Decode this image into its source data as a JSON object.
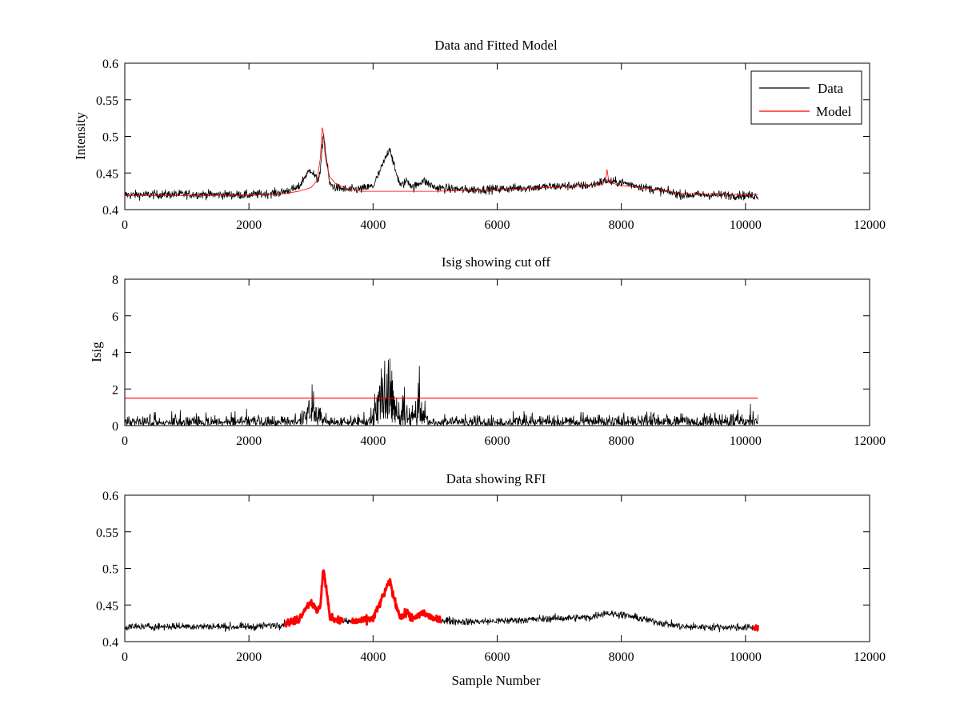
{
  "colors": {
    "data": "#000000",
    "model": "#ff0000",
    "rfi": "#ff0000",
    "cutoff": "#ff0000",
    "background": "#ffffff"
  },
  "chart_data": [
    {
      "type": "line",
      "title": "Data and Fitted Model",
      "xlabel": "",
      "ylabel": "Intensity",
      "xlim": [
        0,
        12000
      ],
      "ylim": [
        0.4,
        0.6
      ],
      "xticks": [
        0,
        2000,
        4000,
        6000,
        8000,
        10000,
        12000
      ],
      "xtick_labels": [
        "0",
        "2000",
        "4000",
        "6000",
        "8000",
        "10000",
        "12000"
      ],
      "yticks": [
        0.4,
        0.45,
        0.5,
        0.55,
        0.6
      ],
      "ytick_labels": [
        "0.4",
        "0.45",
        "0.5",
        "0.55",
        "0.6"
      ],
      "legend": {
        "position": "top-right",
        "entries": [
          "Data",
          "Model"
        ]
      },
      "series": [
        {
          "name": "Data",
          "color": "#000000",
          "noise": 0.006,
          "x": [
            0,
            1000,
            2000,
            2500,
            2800,
            2900,
            3000,
            3100,
            3150,
            3200,
            3250,
            3300,
            3400,
            3600,
            3800,
            4000,
            4100,
            4200,
            4270,
            4350,
            4450,
            4550,
            4650,
            4800,
            5000,
            5500,
            6000,
            7000,
            7500,
            7750,
            7800,
            8000,
            8500,
            9000,
            9500,
            10200
          ],
          "y": [
            0.42,
            0.421,
            0.42,
            0.423,
            0.43,
            0.445,
            0.455,
            0.44,
            0.45,
            0.505,
            0.47,
            0.435,
            0.43,
            0.427,
            0.428,
            0.432,
            0.45,
            0.47,
            0.485,
            0.455,
            0.432,
            0.44,
            0.43,
            0.44,
            0.43,
            0.427,
            0.428,
            0.432,
            0.433,
            0.44,
            0.438,
            0.437,
            0.428,
            0.42,
            0.42,
            0.419
          ]
        },
        {
          "name": "Model",
          "color": "#ff0000",
          "noise": 0,
          "x": [
            0,
            1000,
            2000,
            2500,
            2800,
            3000,
            3100,
            3150,
            3180,
            3200,
            3230,
            3300,
            3400,
            3600,
            3800,
            4000,
            5000,
            6000,
            7000,
            7700,
            7750,
            7770,
            7800,
            8000,
            8500,
            9000,
            9500,
            10200
          ],
          "y": [
            0.419,
            0.419,
            0.42,
            0.421,
            0.425,
            0.43,
            0.44,
            0.47,
            0.512,
            0.505,
            0.47,
            0.445,
            0.435,
            0.428,
            0.425,
            0.425,
            0.425,
            0.427,
            0.431,
            0.434,
            0.443,
            0.455,
            0.437,
            0.433,
            0.428,
            0.422,
            0.421,
            0.42
          ]
        }
      ]
    },
    {
      "type": "line",
      "title": "Isig showing cut off",
      "xlabel": "",
      "ylabel": "Isig",
      "xlim": [
        0,
        12000
      ],
      "ylim": [
        0,
        8
      ],
      "xticks": [
        0,
        2000,
        4000,
        6000,
        8000,
        10000,
        12000
      ],
      "xtick_labels": [
        "0",
        "2000",
        "4000",
        "6000",
        "8000",
        "10000",
        "12000"
      ],
      "yticks": [
        0,
        2,
        4,
        6,
        8
      ],
      "ytick_labels": [
        "0",
        "2",
        "4",
        "6",
        "8"
      ],
      "series": [
        {
          "color": "#000000",
          "kind": "abs-noise",
          "x": [
            0,
            2000,
            2800,
            2900,
            2950,
            3000,
            3050,
            3100,
            3200,
            3600,
            3900,
            4000,
            4100,
            4200,
            4250,
            4300,
            4350,
            4400,
            4450,
            4500,
            4550,
            4600,
            4650,
            4700,
            4750,
            4800,
            4900,
            6000,
            8000,
            9000,
            10200
          ],
          "amp": [
            0.6,
            0.6,
            0.6,
            1.3,
            2.3,
            2.7,
            2.3,
            1.3,
            0.6,
            0.6,
            0.8,
            1.3,
            2.8,
            4.6,
            5.5,
            5.0,
            2.5,
            1.2,
            1.3,
            1.9,
            1.4,
            1.0,
            1.2,
            1.9,
            2.2,
            1.8,
            0.6,
            0.6,
            0.6,
            0.7,
            0.9
          ],
          "cap": 8
        },
        {
          "color": "#ff0000",
          "kind": "line",
          "x": [
            0,
            10200
          ],
          "y": [
            1.5,
            1.5
          ]
        }
      ]
    },
    {
      "type": "line",
      "title": "Data showing RFI",
      "xlabel": "Sample Number",
      "ylabel": "",
      "xlim": [
        0,
        12000
      ],
      "ylim": [
        0.4,
        0.6
      ],
      "xticks": [
        0,
        2000,
        4000,
        6000,
        8000,
        10000,
        12000
      ],
      "xtick_labels": [
        "0",
        "2000",
        "4000",
        "6000",
        "8000",
        "10000",
        "12000"
      ],
      "yticks": [
        0.4,
        0.45,
        0.5,
        0.55,
        0.6
      ],
      "ytick_labels": [
        "0.4",
        "0.45",
        "0.5",
        "0.55",
        "0.6"
      ],
      "rfi_ranges": [
        [
          2580,
          3520
        ],
        [
          3650,
          5100
        ],
        [
          10130,
          10200
        ]
      ],
      "series": [
        {
          "color": "#000000",
          "noise": 0.005,
          "x": [
            0,
            1000,
            2000,
            2500,
            2800,
            2900,
            3000,
            3100,
            3150,
            3200,
            3250,
            3300,
            3400,
            3600,
            3800,
            4000,
            4100,
            4200,
            4270,
            4350,
            4450,
            4550,
            4650,
            4800,
            5000,
            5500,
            6000,
            7000,
            7500,
            7750,
            7800,
            8000,
            8500,
            9000,
            9500,
            10200
          ],
          "y": [
            0.42,
            0.421,
            0.42,
            0.423,
            0.43,
            0.445,
            0.455,
            0.44,
            0.45,
            0.5,
            0.47,
            0.435,
            0.43,
            0.427,
            0.428,
            0.432,
            0.45,
            0.47,
            0.483,
            0.455,
            0.432,
            0.44,
            0.43,
            0.44,
            0.43,
            0.427,
            0.428,
            0.432,
            0.433,
            0.44,
            0.438,
            0.437,
            0.428,
            0.42,
            0.42,
            0.419
          ]
        }
      ]
    }
  ]
}
